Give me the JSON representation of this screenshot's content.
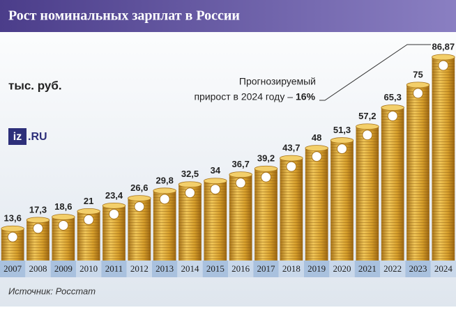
{
  "chart_data": {
    "type": "bar",
    "title": "Рост номинальных зарплат в России",
    "unit_label": "тыс. руб.",
    "logo": {
      "mark": "iz",
      "text": ".RU"
    },
    "annotation": {
      "line1": "Прогнозируемый",
      "line2": "прирост в 2024 году –",
      "highlight": "16%"
    },
    "source": "Источник: Росстат",
    "categories": [
      "2007",
      "2008",
      "2009",
      "2010",
      "2011",
      "2012",
      "2013",
      "2014",
      "2015",
      "2016",
      "2017",
      "2018",
      "2019",
      "2020",
      "2021",
      "2022",
      "2023",
      "2024"
    ],
    "values": [
      13.6,
      17.3,
      18.6,
      21,
      23.4,
      26.6,
      29.8,
      32.5,
      34,
      36.7,
      39.2,
      43.7,
      48,
      51.3,
      57.2,
      65.3,
      75,
      86.87
    ],
    "value_labels": [
      "13,6",
      "17,3",
      "18,6",
      "21",
      "23,4",
      "26,6",
      "29,8",
      "32,5",
      "34",
      "36,7",
      "39,2",
      "43,7",
      "48",
      "51,3",
      "57,2",
      "65,3",
      "75",
      "86,87"
    ],
    "color": "#d9a22a"
  }
}
